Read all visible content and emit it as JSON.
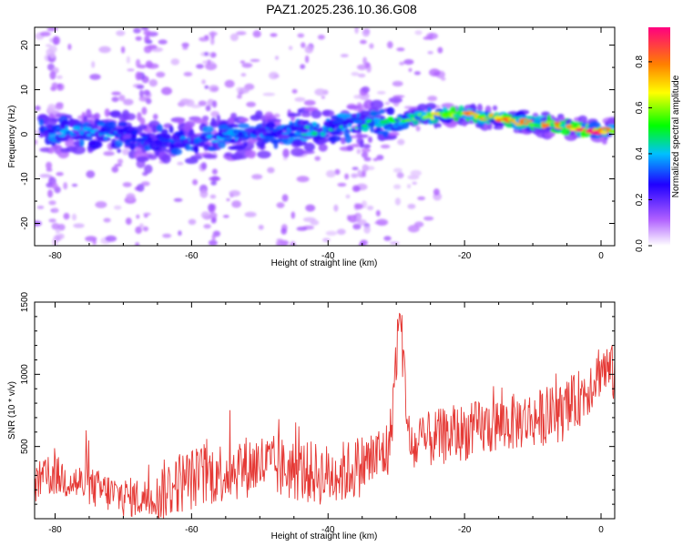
{
  "title": "PAZ1.2025.236.10.36.G08",
  "chart_data": [
    {
      "type": "heatmap",
      "xlabel": "Height of straight line (km)",
      "ylabel": "Frequency (Hz)",
      "xlim": [
        -83,
        2
      ],
      "ylim": [
        -25,
        24
      ],
      "xticks": [
        -80,
        -60,
        -40,
        -20,
        0
      ],
      "yticks": [
        -20,
        -10,
        0,
        10,
        20
      ],
      "colorbar": {
        "label": "Normalized spectral amplitude",
        "range": [
          0,
          0.95
        ],
        "ticks": [
          0.0,
          0.2,
          0.4,
          0.6,
          0.8
        ],
        "colors": [
          "#ffffff",
          "#b060ff",
          "#2000ff",
          "#00c0ff",
          "#00ff00",
          "#ffff00",
          "#ff8000",
          "#ff0080"
        ]
      },
      "ridge": {
        "x": [
          -82,
          -78,
          -74,
          -70,
          -66,
          -62,
          -58,
          -54,
          -50,
          -46,
          -42,
          -38,
          -34,
          -30,
          -26,
          -22,
          -18,
          -14,
          -10,
          -6,
          -2,
          2
        ],
        "frequency": [
          1,
          0.5,
          0,
          0,
          -1,
          -1.5,
          -1,
          -0.5,
          0,
          0.5,
          1,
          1.5,
          2,
          3,
          4,
          4.5,
          4,
          3.5,
          2.5,
          2,
          1,
          0.5
        ],
        "peak_amplitude": [
          0.35,
          0.4,
          0.45,
          0.35,
          0.3,
          0.35,
          0.4,
          0.4,
          0.35,
          0.4,
          0.45,
          0.45,
          0.5,
          0.55,
          0.6,
          0.75,
          0.8,
          0.85,
          0.75,
          0.8,
          0.95,
          0.9
        ]
      }
    },
    {
      "type": "line",
      "xlabel": "Height of straight line (km)",
      "ylabel": "SNR (10 * v/v)",
      "xlim": [
        -83,
        2
      ],
      "ylim": [
        0,
        1500
      ],
      "xticks": [
        -80,
        -60,
        -40,
        -20,
        0
      ],
      "yticks": [
        500,
        1000,
        1500
      ],
      "series": [
        {
          "color": "#e53935",
          "x": [
            -83,
            -80,
            -75,
            -70,
            -66,
            -62,
            -58,
            -55,
            -50,
            -47,
            -44,
            -40,
            -37,
            -33,
            -31,
            -29.5,
            -28,
            -25,
            -20,
            -15,
            -10,
            -5,
            -2,
            0,
            2
          ],
          "y": [
            250,
            300,
            220,
            150,
            140,
            250,
            300,
            330,
            380,
            350,
            330,
            300,
            330,
            420,
            480,
            1450,
            470,
            550,
            600,
            650,
            690,
            740,
            900,
            1050,
            1000
          ]
        }
      ]
    }
  ]
}
